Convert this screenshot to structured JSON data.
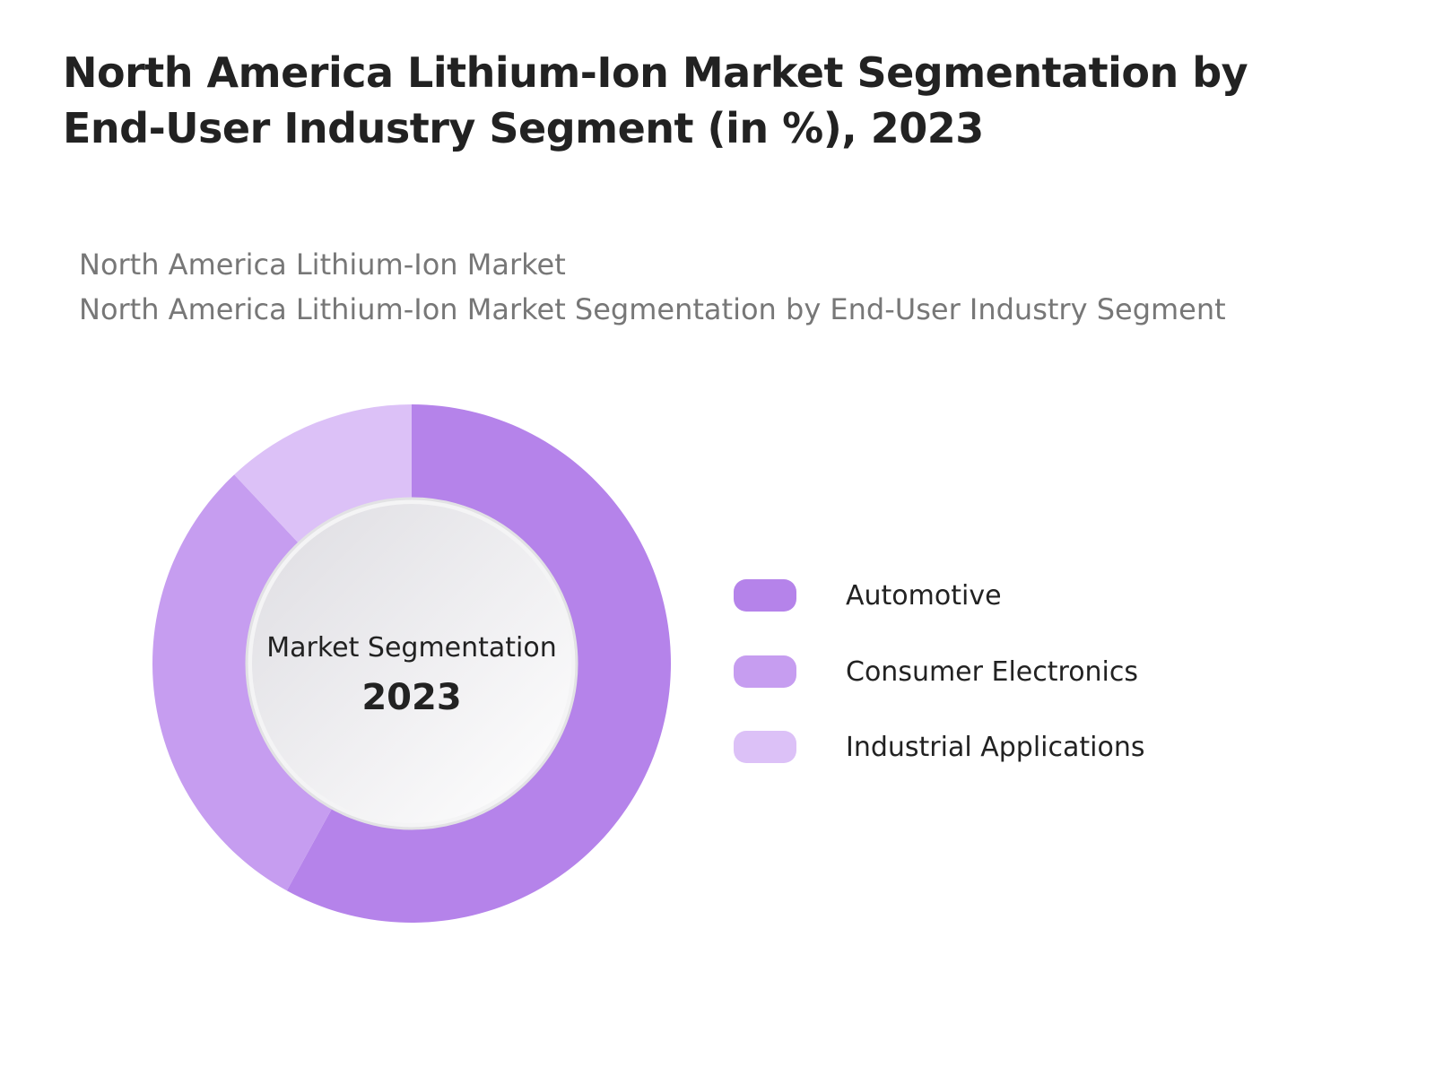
{
  "title": "North America Lithium-Ion Market Segmentation by End-User Industry Segment (in %), 2023",
  "subtitle_1": "North America Lithium-Ion Market",
  "subtitle_2": "North America Lithium-Ion Market Segmentation by End-User Industry Segment",
  "chart_data": {
    "type": "pie",
    "variant": "donut",
    "center_label": "Market Segmentation",
    "center_value": "2023",
    "categories": [
      "Automotive",
      "Consumer Electronics",
      "Industrial Applications"
    ],
    "values": [
      58,
      30,
      12
    ],
    "colors": [
      "#b583ea",
      "#c69df0",
      "#dcc1f7"
    ],
    "legend_position": "right"
  }
}
